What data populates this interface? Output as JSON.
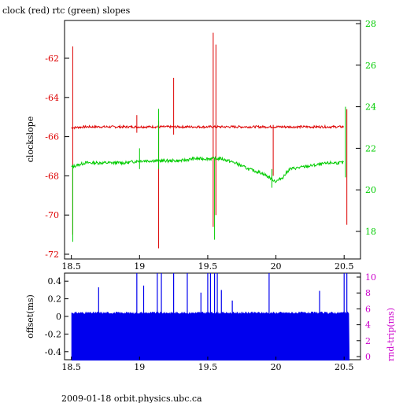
{
  "title": "clock (red) rtc (green) slopes",
  "footer": "2009-01-18 orbit.physics.ubc.ca",
  "colors": {
    "clock": "#dd0000",
    "rtc": "#00cc00",
    "offset": "#0000ee",
    "rndtrip_axis": "#cc00cc",
    "frame": "#000000"
  },
  "chart_data": [
    {
      "type": "line",
      "ylabel": "clockslope",
      "y2label": "",
      "xlim": [
        18.45,
        20.62
      ],
      "ylim": [
        -72.2,
        -79.8
      ],
      "y2lim": [
        16.7,
        28.5
      ],
      "x_ticks": [
        "18.5",
        "19",
        "19.5",
        "20",
        "20.5"
      ],
      "y_ticks": [
        "-62",
        "-64",
        "-66",
        "-68",
        "-70",
        "-72"
      ],
      "y2_ticks": [
        "18",
        "20",
        "22",
        "24",
        "26",
        "28"
      ],
      "series": [
        {
          "name": "clock",
          "color": "#dd0000",
          "axis": "left",
          "x": [
            18.5,
            18.6,
            18.7,
            18.8,
            18.9,
            19.0,
            19.1,
            19.2,
            19.3,
            19.4,
            19.5,
            19.6,
            19.7,
            19.8,
            19.9,
            20.0,
            20.1,
            20.2,
            20.3,
            20.4,
            20.5
          ],
          "y": [
            -65.55,
            -65.5,
            -65.5,
            -65.5,
            -65.5,
            -65.5,
            -65.5,
            -65.5,
            -65.5,
            -65.5,
            -65.5,
            -65.5,
            -65.5,
            -65.5,
            -65.5,
            -65.5,
            -65.5,
            -65.5,
            -65.5,
            -65.5,
            -65.5
          ],
          "spikes": [
            {
              "x": 18.51,
              "low": -71.0,
              "high": -61.4
            },
            {
              "x": 18.98,
              "low": -65.8,
              "high": -64.9
            },
            {
              "x": 19.14,
              "low": -71.7,
              "high": -65.2
            },
            {
              "x": 19.25,
              "low": -65.9,
              "high": -63.0
            },
            {
              "x": 19.54,
              "low": -70.6,
              "high": -60.7
            },
            {
              "x": 19.56,
              "low": -70.0,
              "high": -61.3
            },
            {
              "x": 19.98,
              "low": -68.0,
              "high": -65.4
            },
            {
              "x": 20.52,
              "low": -70.5,
              "high": -64.6
            }
          ]
        },
        {
          "name": "rtc",
          "color": "#00cc00",
          "axis": "right",
          "x": [
            18.5,
            18.6,
            18.7,
            18.8,
            18.9,
            19.0,
            19.1,
            19.2,
            19.3,
            19.4,
            19.5,
            19.6,
            19.7,
            19.8,
            19.85,
            19.9,
            19.95,
            20.0,
            20.05,
            20.1,
            20.2,
            20.3,
            20.4,
            20.5
          ],
          "y": [
            21.1,
            21.3,
            21.3,
            21.3,
            21.3,
            21.4,
            21.4,
            21.4,
            21.4,
            21.5,
            21.5,
            21.5,
            21.3,
            21.0,
            20.9,
            20.8,
            20.6,
            20.4,
            20.6,
            21.0,
            21.1,
            21.2,
            21.3,
            21.3
          ],
          "spikes": [
            {
              "x": 18.51,
              "low": 17.5,
              "high": 21.2
            },
            {
              "x": 19.0,
              "low": 21.0,
              "high": 22.0
            },
            {
              "x": 19.14,
              "low": 21.0,
              "high": 23.9
            },
            {
              "x": 19.55,
              "low": 17.6,
              "high": 21.5
            },
            {
              "x": 19.97,
              "low": 20.1,
              "high": 21.0
            },
            {
              "x": 20.51,
              "low": 20.6,
              "high": 24.0
            }
          ]
        }
      ]
    },
    {
      "type": "bar",
      "ylabel": "offset(ms)",
      "y2label": "rnd-trip(ms)",
      "xlim": [
        18.45,
        20.62
      ],
      "ylim": [
        -0.5,
        0.5
      ],
      "y2lim": [
        0,
        11
      ],
      "x_ticks": [
        "18.5",
        "19",
        "19.5",
        "20",
        "20.5"
      ],
      "y_ticks": [
        "0.4",
        "0.2",
        "0",
        "-0.2",
        "-0.4"
      ],
      "y2_ticks": [
        "10",
        "8",
        "6",
        "4",
        "2",
        "0"
      ],
      "series": [
        {
          "name": "offset",
          "color": "#0000ee",
          "from": -0.5,
          "base_top": 0.03,
          "x_start": 18.5,
          "x_end": 20.54,
          "spikes": [
            {
              "x": 18.7,
              "value": 0.33
            },
            {
              "x": 18.98,
              "value": 0.5
            },
            {
              "x": 19.03,
              "value": 0.35
            },
            {
              "x": 19.13,
              "value": 0.5
            },
            {
              "x": 19.16,
              "value": 0.5
            },
            {
              "x": 19.25,
              "value": 0.5
            },
            {
              "x": 19.35,
              "value": 0.5
            },
            {
              "x": 19.45,
              "value": 0.27
            },
            {
              "x": 19.5,
              "value": 0.5
            },
            {
              "x": 19.52,
              "value": 0.5
            },
            {
              "x": 19.55,
              "value": 0.5
            },
            {
              "x": 19.57,
              "value": 0.5
            },
            {
              "x": 19.6,
              "value": 0.3
            },
            {
              "x": 19.68,
              "value": 0.18
            },
            {
              "x": 19.95,
              "value": 0.5
            },
            {
              "x": 20.32,
              "value": 0.29
            },
            {
              "x": 20.5,
              "value": 0.5
            },
            {
              "x": 20.52,
              "value": 0.5
            }
          ]
        }
      ]
    }
  ]
}
